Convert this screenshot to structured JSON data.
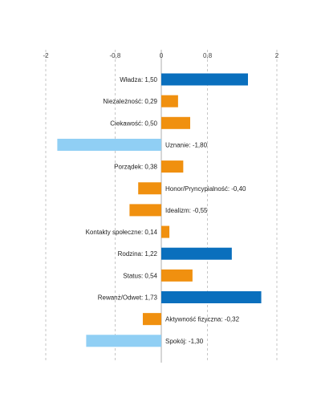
{
  "chart_data": {
    "type": "bar",
    "orientation": "horizontal",
    "xlim": [
      -2,
      2
    ],
    "x_ticks": [
      -2,
      -0.8,
      0,
      0.8,
      2
    ],
    "x_tick_labels": [
      "-2",
      "-0,8",
      "0",
      "0,8",
      "2"
    ],
    "grid": true,
    "categories": [
      "Władza",
      "Niezależność",
      "Ciekawość",
      "Uznanie",
      "Porządek",
      "Honor/Pryncypialność",
      "Idealizm",
      "Kontakty społeczne",
      "Rodzina",
      "Status",
      "Rewanż/Odwet",
      "Aktywność fizyczna",
      "Spokój"
    ],
    "values": [
      1.5,
      0.29,
      0.5,
      -1.8,
      0.38,
      -0.4,
      -0.55,
      0.14,
      1.22,
      0.54,
      1.73,
      -0.32,
      -1.3
    ],
    "value_labels": [
      "1,50",
      "0,29",
      "0,50",
      "-1,80",
      "0,38",
      "-0,40",
      "-0,55",
      "0,14",
      "1,22",
      "0,54",
      "1,73",
      "-0,32",
      "-1,30"
    ],
    "colors": {
      "strong_positive": "#0a6fbd",
      "moderate": "#f0900f",
      "strong_negative": "#90cff4"
    },
    "bar_color_keys": [
      "strong_positive",
      "moderate",
      "moderate",
      "strong_negative",
      "moderate",
      "moderate",
      "moderate",
      "moderate",
      "strong_positive",
      "moderate",
      "strong_positive",
      "moderate",
      "strong_negative"
    ]
  }
}
